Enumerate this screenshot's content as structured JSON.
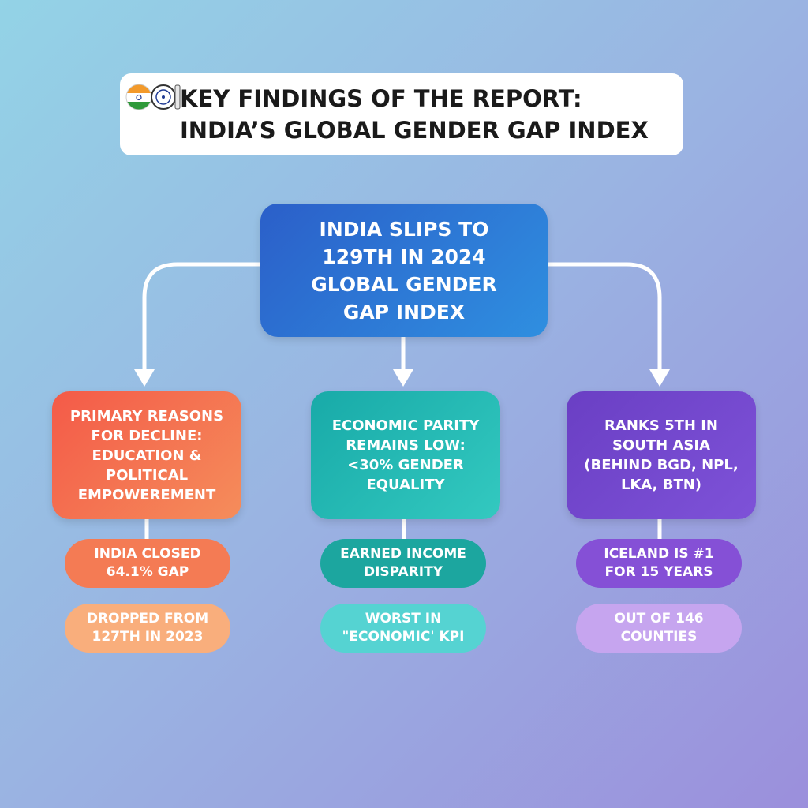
{
  "header": {
    "title": [
      "KEY FINDINGS OF THE REPORT:",
      "INDIA’S GLOBAL GENDER GAP INDEX"
    ]
  },
  "main": {
    "text": [
      "INDIA SLIPS TO",
      "129TH IN 2024",
      "GLOBAL GENDER",
      "GAP INDEX"
    ]
  },
  "columns": [
    {
      "box": [
        "PRIMARY REASONS",
        "FOR DECLINE:",
        "EDUCATION &",
        "POLITICAL",
        "EMPOWEREMENT"
      ],
      "pills": [
        [
          "INDIA CLOSED",
          "64.1% GAP"
        ],
        [
          "DROPPED FROM",
          "127TH IN 2023"
        ]
      ]
    },
    {
      "box": [
        "ECONOMIC PARITY",
        "REMAINS LOW:",
        "<30% GENDER",
        "EQUALITY"
      ],
      "pills": [
        [
          "EARNED INCOME",
          "DISPARITY"
        ],
        [
          "WORST IN",
          "\"ECONOMIC' KPI"
        ]
      ]
    },
    {
      "box": [
        "RANKS 5TH IN",
        "SOUTH ASIA",
        "(BEHIND BGD, NPL,",
        "LKA, BTN)"
      ],
      "pills": [
        [
          "ICELAND IS #1",
          "FOR 15 YEARS"
        ],
        [
          "OUT OF 146",
          "COUNTIES"
        ]
      ]
    }
  ]
}
